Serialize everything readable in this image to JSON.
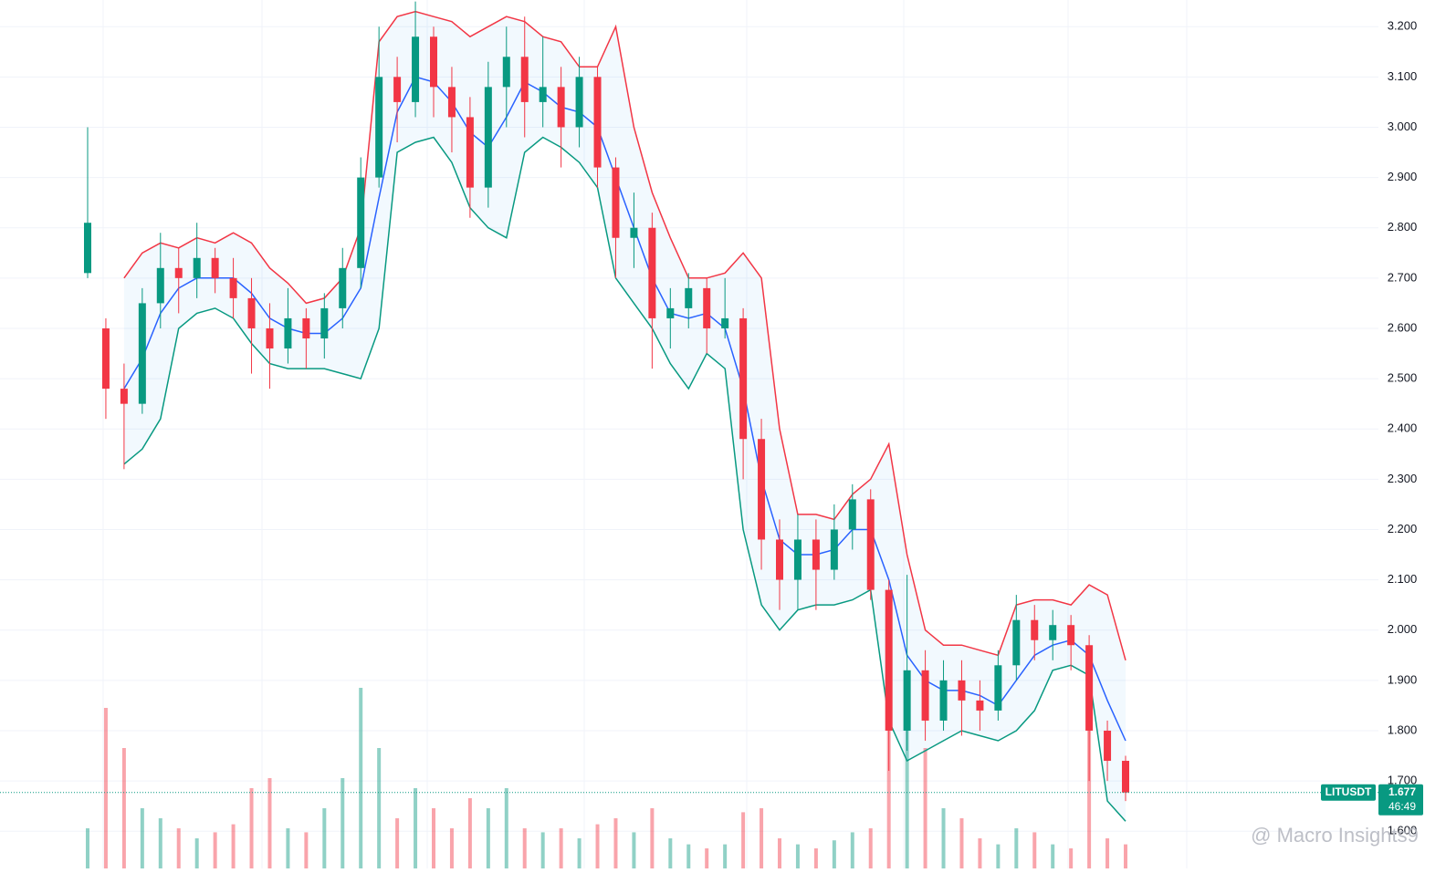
{
  "chart_data": {
    "type": "candlestick",
    "symbol": "LITUSDT",
    "last_price": 1.677,
    "countdown": "46:49",
    "watermark": "@ Macro Insights9",
    "up_color": "#089981",
    "down_color": "#f23645",
    "open": [
      2.71,
      2.6,
      2.48,
      2.45,
      2.65,
      2.72,
      2.7,
      2.74,
      2.7,
      2.66,
      2.6,
      2.56,
      2.62,
      2.58,
      2.64,
      2.72,
      2.9,
      3.1,
      3.05,
      3.18,
      3.08,
      3.02,
      2.88,
      3.08,
      3.14,
      3.05,
      3.08,
      3.0,
      3.1,
      2.92,
      2.78,
      2.8,
      2.62,
      2.64,
      2.68,
      2.6,
      2.62,
      2.38,
      2.18,
      2.1,
      2.18,
      2.12,
      2.2,
      2.26,
      2.08,
      1.8,
      1.92,
      1.82,
      1.9,
      1.86,
      1.84,
      1.93,
      2.02,
      1.98,
      2.01,
      1.97,
      1.8,
      1.74
    ],
    "high": [
      3.0,
      2.62,
      2.53,
      2.68,
      2.79,
      2.76,
      2.81,
      2.76,
      2.74,
      2.7,
      2.65,
      2.68,
      2.64,
      2.67,
      2.76,
      2.94,
      3.2,
      3.14,
      3.25,
      3.2,
      3.12,
      3.06,
      3.13,
      3.2,
      3.22,
      3.18,
      3.12,
      3.14,
      3.12,
      2.94,
      2.87,
      2.83,
      2.68,
      2.71,
      2.7,
      2.7,
      2.64,
      2.42,
      2.22,
      2.23,
      2.22,
      2.25,
      2.29,
      2.28,
      2.1,
      2.11,
      1.96,
      1.94,
      1.94,
      1.9,
      1.96,
      2.07,
      2.05,
      2.04,
      2.03,
      1.99,
      1.82,
      1.75
    ],
    "low": [
      2.7,
      2.42,
      2.32,
      2.43,
      2.6,
      2.63,
      2.66,
      2.67,
      2.62,
      2.51,
      2.48,
      2.53,
      2.52,
      2.54,
      2.6,
      2.68,
      2.88,
      2.97,
      3.02,
      3.02,
      2.95,
      2.82,
      2.84,
      3.0,
      2.98,
      3.0,
      2.92,
      2.96,
      2.88,
      2.7,
      2.72,
      2.52,
      2.56,
      2.6,
      2.55,
      2.58,
      2.3,
      2.12,
      2.04,
      2.04,
      2.04,
      2.1,
      2.16,
      2.06,
      1.72,
      1.76,
      1.78,
      1.8,
      1.79,
      1.8,
      1.82,
      1.9,
      1.94,
      1.94,
      1.92,
      1.7,
      1.7,
      1.66
    ],
    "close": [
      2.81,
      2.48,
      2.45,
      2.65,
      2.72,
      2.7,
      2.74,
      2.7,
      2.66,
      2.6,
      2.56,
      2.62,
      2.58,
      2.64,
      2.72,
      2.9,
      3.1,
      3.05,
      3.18,
      3.08,
      3.02,
      2.88,
      3.08,
      3.14,
      3.05,
      3.08,
      3.0,
      3.1,
      2.92,
      2.78,
      2.8,
      2.62,
      2.64,
      2.68,
      2.6,
      2.62,
      2.38,
      2.18,
      2.1,
      2.18,
      2.12,
      2.2,
      2.26,
      2.08,
      1.8,
      1.92,
      1.82,
      1.9,
      1.86,
      1.84,
      1.93,
      2.02,
      1.98,
      2.01,
      1.97,
      1.8,
      1.74,
      1.677
    ],
    "volume": [
      20,
      80,
      60,
      30,
      25,
      20,
      15,
      18,
      22,
      40,
      45,
      20,
      18,
      30,
      45,
      90,
      60,
      25,
      40,
      30,
      20,
      35,
      30,
      40,
      20,
      18,
      20,
      15,
      22,
      25,
      18,
      30,
      15,
      12,
      10,
      12,
      28,
      30,
      15,
      12,
      10,
      14,
      18,
      20,
      100,
      95,
      60,
      30,
      25,
      15,
      12,
      20,
      18,
      12,
      10,
      70,
      15,
      12
    ],
    "series": [
      {
        "name": "Upper",
        "color": "#f23645",
        "values": [
          null,
          null,
          2.7,
          2.75,
          2.77,
          2.76,
          2.78,
          2.77,
          2.79,
          2.77,
          2.72,
          2.69,
          2.65,
          2.66,
          2.7,
          2.8,
          3.17,
          3.22,
          3.23,
          3.22,
          3.21,
          3.18,
          3.2,
          3.22,
          3.21,
          3.18,
          3.17,
          3.12,
          3.12,
          3.2,
          3.0,
          2.87,
          2.78,
          2.7,
          2.7,
          2.71,
          2.75,
          2.7,
          2.4,
          2.23,
          2.23,
          2.22,
          2.27,
          2.3,
          2.37,
          2.15,
          2.0,
          1.97,
          1.97,
          1.96,
          1.95,
          2.05,
          2.06,
          2.06,
          2.05,
          2.09,
          2.07,
          1.94
        ]
      },
      {
        "name": "Basis",
        "color": "#2962ff",
        "values": [
          null,
          null,
          2.48,
          2.54,
          2.63,
          2.68,
          2.7,
          2.7,
          2.7,
          2.67,
          2.62,
          2.6,
          2.59,
          2.59,
          2.62,
          2.68,
          2.86,
          3.03,
          3.1,
          3.09,
          3.05,
          2.99,
          2.96,
          3.02,
          3.09,
          3.07,
          3.04,
          3.03,
          3.0,
          2.9,
          2.8,
          2.7,
          2.63,
          2.62,
          2.63,
          2.6,
          2.48,
          2.3,
          2.18,
          2.15,
          2.15,
          2.16,
          2.2,
          2.2,
          2.1,
          1.95,
          1.9,
          1.88,
          1.88,
          1.87,
          1.85,
          1.9,
          1.95,
          1.97,
          1.98,
          1.95,
          1.86,
          1.78
        ]
      },
      {
        "name": "Lower",
        "color": "#089981",
        "values": [
          null,
          null,
          2.33,
          2.36,
          2.42,
          2.6,
          2.63,
          2.64,
          2.62,
          2.57,
          2.53,
          2.52,
          2.52,
          2.52,
          2.51,
          2.5,
          2.6,
          2.95,
          2.97,
          2.98,
          2.93,
          2.84,
          2.8,
          2.78,
          2.95,
          2.98,
          2.96,
          2.93,
          2.88,
          2.7,
          2.65,
          2.6,
          2.53,
          2.48,
          2.55,
          2.52,
          2.2,
          2.05,
          2.0,
          2.04,
          2.05,
          2.05,
          2.06,
          2.08,
          1.82,
          1.74,
          1.76,
          1.78,
          1.8,
          1.79,
          1.78,
          1.8,
          1.84,
          1.92,
          1.93,
          1.91,
          1.66,
          1.62
        ]
      }
    ],
    "ylim": [
      1.526,
      3.253
    ],
    "yticks": [
      {
        "value": 1.6,
        "label": "1.600"
      },
      {
        "value": 1.7,
        "label": "1.700"
      },
      {
        "value": 1.8,
        "label": "1.800"
      },
      {
        "value": 1.9,
        "label": "1.900"
      },
      {
        "value": 2.0,
        "label": "2.000"
      },
      {
        "value": 2.1,
        "label": "2.100"
      },
      {
        "value": 2.2,
        "label": "2.200"
      },
      {
        "value": 2.3,
        "label": "2.300"
      },
      {
        "value": 2.4,
        "label": "2.400"
      },
      {
        "value": 2.5,
        "label": "2.500"
      },
      {
        "value": 2.6,
        "label": "2.600"
      },
      {
        "value": 2.7,
        "label": "2.700"
      },
      {
        "value": 2.8,
        "label": "2.800"
      },
      {
        "value": 2.9,
        "label": "2.900"
      },
      {
        "value": 3.0,
        "label": "3.000"
      },
      {
        "value": 3.1,
        "label": "3.100"
      },
      {
        "value": 3.2,
        "label": "3.200"
      }
    ],
    "grid": true
  }
}
